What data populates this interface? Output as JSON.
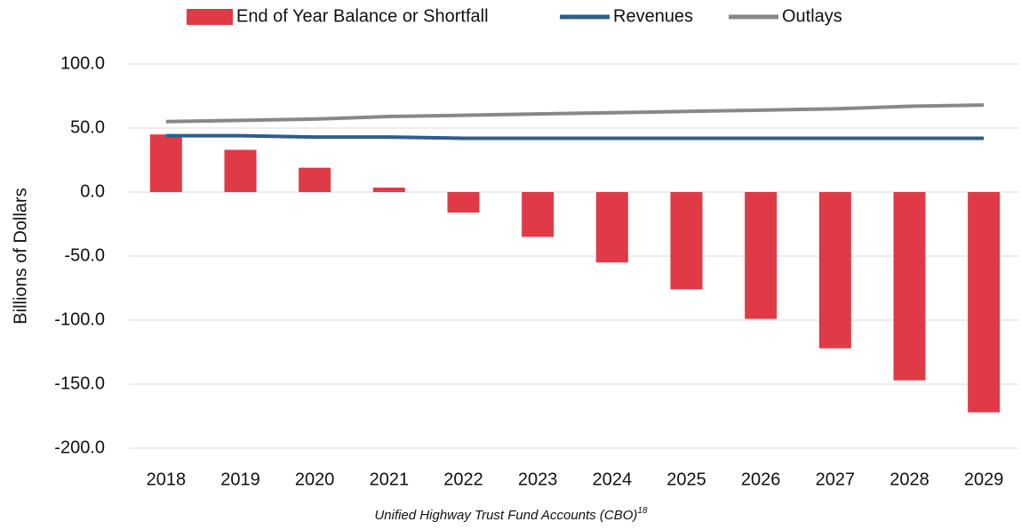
{
  "chart_data": {
    "type": "bar",
    "caption": "Unified Highway Trust Fund Accounts (CBO)",
    "caption_note": "18",
    "y_label": "Billions of Dollars",
    "categories": [
      "2018",
      "2019",
      "2020",
      "2021",
      "2022",
      "2023",
      "2024",
      "2025",
      "2026",
      "2027",
      "2028",
      "2029"
    ],
    "series": [
      {
        "name": "End of Year Balance or Shortfall",
        "type": "bar",
        "color": "#e03a47",
        "values": [
          45,
          33,
          19,
          3.5,
          -16,
          -35,
          -55,
          -76,
          -99,
          -122,
          -147,
          -172
        ]
      },
      {
        "name": "Revenues",
        "type": "line",
        "color": "#2f5d8c",
        "values": [
          44,
          44,
          43,
          43,
          42,
          42,
          42,
          42,
          42,
          42,
          42,
          42
        ]
      },
      {
        "name": "Outlays",
        "type": "line",
        "color": "#888888",
        "values": [
          55,
          56,
          57,
          59,
          60,
          61,
          62,
          63,
          64,
          65,
          67,
          68
        ]
      }
    ],
    "ylim": [
      -200,
      100
    ],
    "yticks": [
      {
        "value": -200,
        "label": "-200.0"
      },
      {
        "value": -150,
        "label": "-150.0"
      },
      {
        "value": -100,
        "label": "-100.0"
      },
      {
        "value": -50,
        "label": "-50.0"
      },
      {
        "value": 0,
        "label": "0.0"
      },
      {
        "value": 50,
        "label": "50.0"
      },
      {
        "value": 100,
        "label": "100.0"
      }
    ],
    "grid": true,
    "legend": "top"
  }
}
